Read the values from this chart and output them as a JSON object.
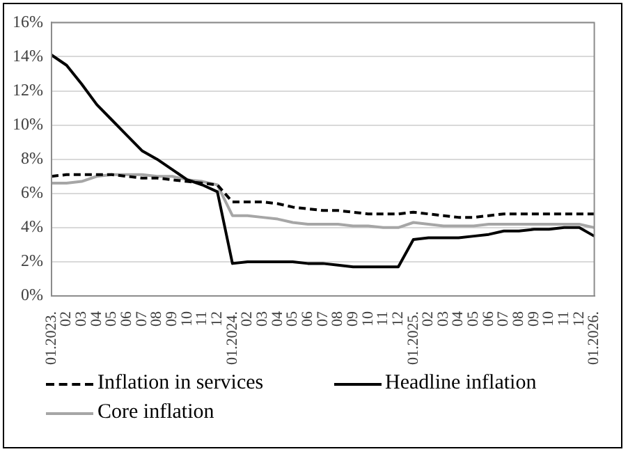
{
  "chart_data": {
    "type": "line",
    "categories": [
      "01.2023.",
      "02",
      "03",
      "04",
      "05",
      "06",
      "07",
      "08",
      "09",
      "10",
      "11",
      "12",
      "01.2024.",
      "02",
      "03",
      "04",
      "05",
      "06",
      "07",
      "08",
      "09",
      "10",
      "11",
      "12",
      "01.2025.",
      "02",
      "03",
      "04",
      "05",
      "06",
      "07",
      "08",
      "09",
      "10",
      "11",
      "12",
      "01.2026."
    ],
    "series": [
      {
        "name": "Inflation in services",
        "color": "#000000",
        "line_style": "dashed",
        "values": [
          7.0,
          7.1,
          7.1,
          7.1,
          7.1,
          7.0,
          6.9,
          6.9,
          6.8,
          6.7,
          6.6,
          6.5,
          5.5,
          5.5,
          5.5,
          5.4,
          5.2,
          5.1,
          5.0,
          5.0,
          4.9,
          4.8,
          4.8,
          4.8,
          4.9,
          4.8,
          4.7,
          4.6,
          4.6,
          4.7,
          4.8,
          4.8,
          4.8,
          4.8,
          4.8,
          4.8,
          4.8
        ]
      },
      {
        "name": "Headline inflation",
        "color": "#000000",
        "line_style": "solid",
        "values": [
          14.1,
          13.5,
          12.4,
          11.2,
          10.3,
          9.4,
          8.5,
          8.0,
          7.4,
          6.8,
          6.5,
          6.1,
          1.9,
          2.0,
          2.0,
          2.0,
          2.0,
          1.9,
          1.9,
          1.8,
          1.7,
          1.7,
          1.7,
          1.7,
          3.3,
          3.4,
          3.4,
          3.4,
          3.5,
          3.6,
          3.8,
          3.8,
          3.9,
          3.9,
          4.0,
          4.0,
          3.5
        ]
      },
      {
        "name": "Core inflation",
        "color": "#a6a6a6",
        "line_style": "solid",
        "values": [
          6.6,
          6.6,
          6.7,
          7.0,
          7.1,
          7.1,
          7.1,
          7.0,
          7.0,
          6.8,
          6.7,
          6.5,
          4.7,
          4.7,
          4.6,
          4.5,
          4.3,
          4.2,
          4.2,
          4.2,
          4.1,
          4.1,
          4.0,
          4.0,
          4.3,
          4.2,
          4.1,
          4.1,
          4.1,
          4.2,
          4.2,
          4.2,
          4.2,
          4.2,
          4.2,
          4.2,
          4.0
        ]
      }
    ],
    "ylim": [
      0,
      16
    ],
    "yticks": [
      {
        "value": 0,
        "label": "0%"
      },
      {
        "value": 2,
        "label": "2%"
      },
      {
        "value": 4,
        "label": "4%"
      },
      {
        "value": 6,
        "label": "6%"
      },
      {
        "value": 8,
        "label": "8%"
      },
      {
        "value": 10,
        "label": "10%"
      },
      {
        "value": 12,
        "label": "12%"
      },
      {
        "value": 14,
        "label": "14%"
      },
      {
        "value": 16,
        "label": "16%"
      }
    ],
    "grid": "y",
    "legend": "bottom",
    "marker": "none"
  }
}
